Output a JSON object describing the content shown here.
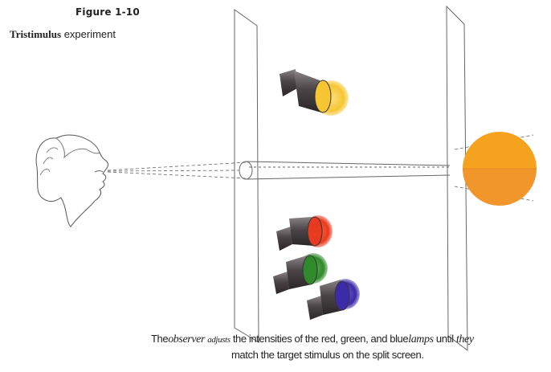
{
  "figure": {
    "number": "Figure 1-10",
    "title_bold": "Tristimulus",
    "title_rest": "experiment"
  },
  "caption": {
    "p1": "The",
    "p2": "observer",
    "p3": "adjusts",
    "p4": "the intensities of the red, green, and blue",
    "p5": "lamps",
    "p6": "until",
    "p7": "they",
    "line2": "match the target stimulus on the split screen."
  },
  "colors": {
    "target_top": "#f5a21e",
    "target_bottom": "#f0962b",
    "lamp_yellow": "#f6c632",
    "lamp_red": "#e83a1e",
    "lamp_green": "#2e8a2a",
    "lamp_blue": "#3c2aa8",
    "lamp_body": "#4a4446",
    "line": "#444444"
  }
}
